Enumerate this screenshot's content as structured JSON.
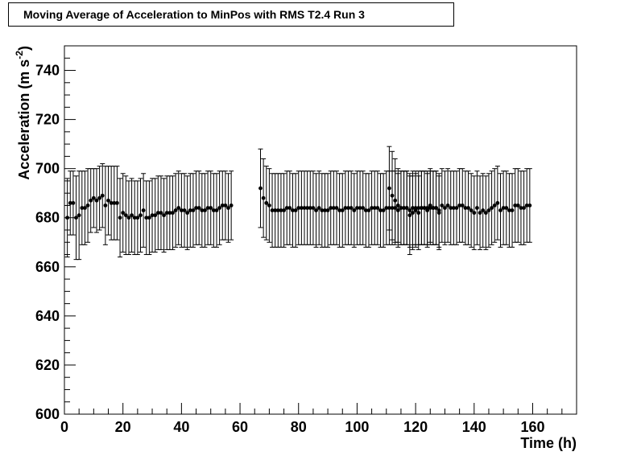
{
  "chart_data": {
    "type": "scatter",
    "title": "Moving Average of Acceleration to MinPos with RMS T2.4 Run 3",
    "xlabel": "Time (h)",
    "ylabel_main": "Acceleration (m s",
    "ylabel_exponent": "-2",
    "ylabel_close": ")",
    "xlim": [
      0,
      175
    ],
    "ylim": [
      600,
      750
    ],
    "x_ticks": [
      0,
      20,
      40,
      60,
      80,
      100,
      120,
      140,
      160
    ],
    "y_ticks": [
      600,
      620,
      640,
      660,
      680,
      700,
      720,
      740
    ],
    "grid": false,
    "series": [
      {
        "marker": "filled-circle",
        "color": "#000000",
        "segments": [
          {
            "x_start": 1,
            "x_step": 1,
            "values": [
              680,
              686,
              686,
              680,
              681,
              684,
              684,
              685,
              687,
              688,
              687,
              688,
              689,
              685,
              687,
              686,
              686,
              686,
              680,
              682,
              681,
              680,
              681,
              680,
              680,
              681,
              683,
              680,
              680,
              681,
              681,
              682,
              682,
              681,
              682,
              682,
              682,
              683,
              684,
              683,
              683,
              682,
              683,
              683,
              684,
              684,
              683,
              683,
              684,
              684,
              683,
              683,
              684,
              685,
              685,
              684,
              685
            ],
            "errors": [
              16,
              13,
              13,
              17,
              18,
              15,
              15,
              15,
              13,
              12,
              13,
              13,
              13,
              16,
              14,
              15,
              15,
              15,
              16,
              16,
              16,
              15,
              15,
              15,
              15,
              15,
              15,
              15,
              15,
              15,
              15,
              15,
              15,
              15,
              15,
              15,
              15,
              15,
              15,
              15,
              15,
              15,
              15,
              15,
              15,
              15,
              15,
              15,
              15,
              15,
              15,
              15,
              15,
              14,
              14,
              14,
              14
            ]
          },
          {
            "x_start": 67,
            "x_step": 1,
            "values": [
              692,
              688,
              686,
              685,
              683,
              683,
              683,
              683,
              683,
              684,
              684,
              683,
              683,
              684,
              684,
              684,
              684,
              684,
              684,
              683,
              684,
              683,
              683,
              683,
              684,
              684,
              684,
              683,
              683,
              684,
              684,
              684,
              683,
              684,
              684,
              684,
              683,
              683,
              684,
              684,
              684,
              683,
              683,
              684,
              684,
              684,
              684,
              683,
              684,
              684,
              684,
              683,
              684,
              684,
              684,
              684,
              684,
              683,
              684,
              684,
              684,
              683
            ],
            "errors": [
              16,
              16,
              15,
              15,
              15,
              15,
              15,
              15,
              15,
              15,
              15,
              15,
              15,
              15,
              15,
              15,
              15,
              15,
              15,
              15,
              15,
              15,
              15,
              15,
              15,
              15,
              15,
              15,
              15,
              15,
              15,
              15,
              15,
              15,
              15,
              15,
              15,
              15,
              15,
              15,
              15,
              15,
              15,
              15,
              15,
              15,
              15,
              15,
              15,
              15,
              15,
              15,
              15,
              15,
              15,
              15,
              15,
              15,
              15,
              15,
              15,
              15
            ]
          },
          {
            "x_start": 111,
            "x_step": 1,
            "values": [
              692,
              689,
              687,
              685,
              684,
              684,
              684,
              681,
              682,
              683,
              682,
              684,
              684,
              684,
              685,
              684,
              684,
              682,
              685,
              684,
              685,
              684,
              684,
              684,
              685,
              685,
              684,
              684,
              683,
              682,
              684,
              682,
              683,
              682,
              683,
              684,
              685,
              686,
              683,
              684,
              684,
              683,
              683,
              685,
              685,
              684,
              684,
              685,
              685
            ],
            "errors": [
              17,
              18,
              17,
              15,
              15,
              15,
              15,
              16,
              15,
              15,
              15,
              15,
              15,
              15,
              15,
              15,
              15,
              15,
              15,
              15,
              15,
              15,
              15,
              15,
              15,
              15,
              15,
              15,
              15,
              15,
              15,
              15,
              15,
              15,
              15,
              15,
              15,
              15,
              15,
              15,
              15,
              15,
              15,
              15,
              15,
              15,
              15,
              15,
              15
            ]
          }
        ]
      }
    ]
  }
}
